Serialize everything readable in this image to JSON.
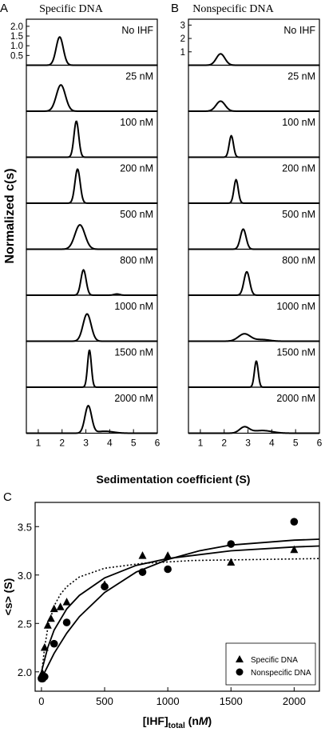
{
  "chart_data": [
    {
      "type": "line",
      "panel_letter": "A",
      "title": "Specific DNA",
      "ylabel": "Normalized c(s)",
      "xlabel": "Sedimentation coefficient (S)",
      "xlim": [
        0.5,
        6
      ],
      "xticks": [
        "1",
        "2",
        "3",
        "4",
        "5",
        "6"
      ],
      "ylim_first": [
        0,
        2.2
      ],
      "yticks_first": [
        "0.5",
        "1.0",
        "1.5",
        "2.0"
      ],
      "series": [
        {
          "name": "No IHF",
          "peaks": [
            {
              "center": 1.9,
              "width": 0.15,
              "height": 1.45
            }
          ]
        },
        {
          "name": "25 nM",
          "peaks": [
            {
              "center": 1.95,
              "width": 0.19,
              "height": 1.35
            }
          ]
        },
        {
          "name": "100 nM",
          "peaks": [
            {
              "center": 2.6,
              "width": 0.1,
              "height": 1.85
            }
          ]
        },
        {
          "name": "200 nM",
          "peaks": [
            {
              "center": 2.65,
              "width": 0.11,
              "height": 1.75
            }
          ]
        },
        {
          "name": "500 nM",
          "peaks": [
            {
              "center": 2.75,
              "width": 0.21,
              "height": 1.25
            }
          ]
        },
        {
          "name": "800 nM",
          "peaks": [
            {
              "center": 2.9,
              "width": 0.11,
              "height": 1.3
            },
            {
              "center": 4.3,
              "width": 0.12,
              "height": 0.06
            }
          ]
        },
        {
          "name": "1000 nM",
          "peaks": [
            {
              "center": 3.05,
              "width": 0.17,
              "height": 1.4
            }
          ]
        },
        {
          "name": "1500 nM",
          "peaks": [
            {
              "center": 3.15,
              "width": 0.08,
              "height": 1.9
            }
          ]
        },
        {
          "name": "2000 nM",
          "peaks": [
            {
              "center": 3.1,
              "width": 0.14,
              "height": 1.4
            },
            {
              "center": 3.8,
              "width": 0.35,
              "height": 0.1
            }
          ]
        }
      ]
    },
    {
      "type": "line",
      "panel_letter": "B",
      "title": "Nonspecific DNA",
      "xlim": [
        0.5,
        6
      ],
      "xticks": [
        "1",
        "2",
        "3",
        "4",
        "5",
        "6"
      ],
      "ylim_first": [
        0,
        3.2
      ],
      "yticks_first": [
        "1",
        "2",
        "3"
      ],
      "series": [
        {
          "name": "No IHF",
          "peaks": [
            {
              "center": 1.85,
              "width": 0.18,
              "height": 0.85
            }
          ]
        },
        {
          "name": "25 nM",
          "peaks": [
            {
              "center": 1.85,
              "width": 0.19,
              "height": 0.75
            }
          ]
        },
        {
          "name": "100 nM",
          "peaks": [
            {
              "center": 2.3,
              "width": 0.09,
              "height": 1.6
            }
          ]
        },
        {
          "name": "200 nM",
          "peaks": [
            {
              "center": 2.5,
              "width": 0.09,
              "height": 1.75
            }
          ]
        },
        {
          "name": "500 nM",
          "peaks": [
            {
              "center": 2.8,
              "width": 0.12,
              "height": 1.5
            }
          ]
        },
        {
          "name": "800 nM",
          "peaks": [
            {
              "center": 2.95,
              "width": 0.12,
              "height": 1.75
            }
          ]
        },
        {
          "name": "1000 nM",
          "peaks": [
            {
              "center": 2.85,
              "width": 0.25,
              "height": 0.55
            },
            {
              "center": 3.6,
              "width": 0.3,
              "height": 0.12
            }
          ]
        },
        {
          "name": "1500 nM",
          "peaks": [
            {
              "center": 3.35,
              "width": 0.08,
              "height": 1.95
            }
          ]
        },
        {
          "name": "2000 nM",
          "peaks": [
            {
              "center": 2.85,
              "width": 0.2,
              "height": 0.45
            },
            {
              "center": 3.6,
              "width": 0.4,
              "height": 0.2
            }
          ]
        }
      ]
    },
    {
      "type": "scatter",
      "panel_letter": "C",
      "xlabel_main": "[IHF]",
      "xlabel_sub": "total",
      "xlabel_unit_open": " (n",
      "xlabel_unit_italic": "M",
      "xlabel_unit_close": ")",
      "ylabel": "<s> (S)",
      "xlim": [
        -50,
        2200
      ],
      "ylim": [
        1.8,
        3.75
      ],
      "xticks": [
        0,
        500,
        1000,
        1500,
        2000
      ],
      "yticks": [
        2.0,
        2.5,
        3.0,
        3.5
      ],
      "legend": {
        "position": "bottom-right",
        "items": [
          "Specific DNA",
          "Nonspecific DNA"
        ]
      },
      "series": [
        {
          "name": "Specific DNA",
          "marker": "triangle",
          "points": [
            [
              0,
              1.97
            ],
            [
              10,
              1.98
            ],
            [
              25,
              2.25
            ],
            [
              50,
              2.48
            ],
            [
              75,
              2.55
            ],
            [
              100,
              2.65
            ],
            [
              150,
              2.67
            ],
            [
              200,
              2.72
            ],
            [
              500,
              2.9
            ],
            [
              800,
              3.2
            ],
            [
              1000,
              3.2
            ],
            [
              1500,
              3.13
            ],
            [
              2000,
              3.26
            ]
          ]
        },
        {
          "name": "Nonspecific DNA",
          "marker": "circle",
          "points": [
            [
              0,
              1.93
            ],
            [
              10,
              1.93
            ],
            [
              25,
              1.95
            ],
            [
              100,
              2.29
            ],
            [
              200,
              2.51
            ],
            [
              500,
              2.88
            ],
            [
              800,
              3.03
            ],
            [
              1000,
              3.06
            ],
            [
              1500,
              3.32
            ],
            [
              2000,
              3.55
            ]
          ]
        }
      ],
      "fits": [
        {
          "style": "solid",
          "points": [
            [
              0,
              2.0
            ],
            [
              50,
              2.25
            ],
            [
              100,
              2.43
            ],
            [
              200,
              2.65
            ],
            [
              300,
              2.79
            ],
            [
              500,
              2.97
            ],
            [
              750,
              3.1
            ],
            [
              1000,
              3.17
            ],
            [
              1500,
              3.25
            ],
            [
              2000,
              3.29
            ],
            [
              2200,
              3.3
            ]
          ]
        },
        {
          "style": "solid",
          "points": [
            [
              0,
              1.93
            ],
            [
              100,
              2.19
            ],
            [
              200,
              2.4
            ],
            [
              300,
              2.57
            ],
            [
              500,
              2.82
            ],
            [
              750,
              3.03
            ],
            [
              1000,
              3.16
            ],
            [
              1250,
              3.25
            ],
            [
              1500,
              3.31
            ],
            [
              2000,
              3.36
            ],
            [
              2200,
              3.37
            ]
          ]
        },
        {
          "style": "dotted",
          "points": [
            [
              0,
              1.97
            ],
            [
              25,
              2.25
            ],
            [
              50,
              2.45
            ],
            [
              100,
              2.68
            ],
            [
              150,
              2.8
            ],
            [
              200,
              2.88
            ],
            [
              300,
              2.98
            ],
            [
              500,
              3.07
            ],
            [
              800,
              3.12
            ],
            [
              1200,
              3.15
            ],
            [
              2200,
              3.17
            ]
          ]
        }
      ]
    }
  ]
}
